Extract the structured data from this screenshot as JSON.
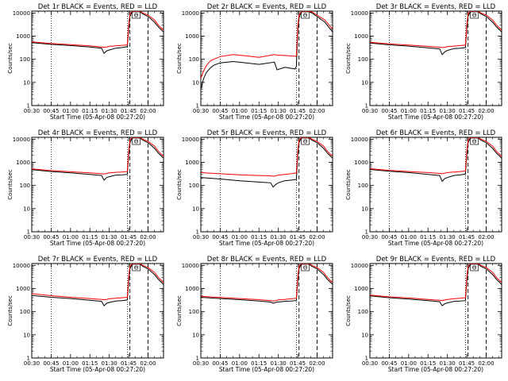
{
  "figure": {
    "common": {
      "xlabel": "Start Time (05-Apr-08 00:27:20)",
      "ylabel": "Counts/sec",
      "x_ticks": [
        "00:30",
        "00:45",
        "01:00",
        "01:15",
        "01:30",
        "01:45",
        "02:00"
      ],
      "y_ticks": [
        "1",
        "10",
        "100",
        "1000",
        "10000"
      ],
      "y_scale": "log",
      "ylim": [
        1,
        12000
      ],
      "xlim_minutes_after_midnight": [
        30,
        132
      ],
      "colors": {
        "events": "#000000",
        "lld": "#ff0000"
      },
      "marker_label": "Θ",
      "dotted_lines_at": [
        "00:45",
        "01:44"
      ],
      "dashed_lines_at": [
        "01:46",
        "02:00"
      ]
    }
  },
  "chart_data": [
    {
      "type": "line",
      "title": "Det 1r BLACK = Events, RED = LLD",
      "series": [
        {
          "name": "BLACK = Events",
          "x": [
            30,
            45,
            60,
            75,
            84,
            86,
            88,
            90,
            95,
            100,
            104,
            105,
            106,
            108,
            110,
            113,
            116,
            120,
            125,
            128,
            132
          ],
          "y": [
            520,
            440,
            390,
            340,
            300,
            180,
            230,
            250,
            300,
            320,
            350,
            2000,
            7000,
            12000,
            12000,
            12000,
            9000,
            7000,
            4000,
            2500,
            1500
          ]
        },
        {
          "name": "RED = LLD",
          "x": [
            30,
            45,
            60,
            75,
            84,
            86,
            88,
            90,
            95,
            100,
            104,
            105,
            106,
            108,
            110,
            113,
            116,
            120,
            125,
            128,
            132
          ],
          "y": [
            560,
            480,
            430,
            380,
            340,
            330,
            340,
            360,
            380,
            400,
            420,
            3000,
            9000,
            12000,
            12000,
            12000,
            10000,
            8000,
            5000,
            3000,
            1800
          ]
        }
      ]
    },
    {
      "type": "line",
      "title": "Det 2r BLACK = Events, RED = LLD",
      "series": [
        {
          "name": "BLACK = Events",
          "x": [
            30,
            32,
            34,
            36,
            38,
            40,
            45,
            55,
            65,
            75,
            87,
            89,
            95,
            103,
            104,
            105,
            106,
            108,
            112,
            116,
            120,
            126,
            132
          ],
          "y": [
            5,
            14,
            25,
            35,
            45,
            55,
            70,
            80,
            70,
            60,
            75,
            35,
            45,
            38,
            50,
            1500,
            6000,
            12000,
            12000,
            10000,
            7000,
            4000,
            1500
          ]
        },
        {
          "name": "RED = LLD",
          "x": [
            30,
            32,
            34,
            36,
            38,
            40,
            45,
            55,
            65,
            75,
            87,
            89,
            95,
            103,
            104,
            105,
            106,
            108,
            112,
            116,
            120,
            126,
            132
          ],
          "y": [
            15,
            30,
            50,
            70,
            90,
            100,
            130,
            160,
            140,
            120,
            160,
            150,
            145,
            135,
            140,
            2500,
            8000,
            12000,
            12000,
            11000,
            8000,
            5000,
            2000
          ]
        }
      ]
    },
    {
      "type": "line",
      "title": "Det 3r BLACK = Events, RED = LLD",
      "series": [
        {
          "name": "BLACK = Events",
          "x": [
            30,
            45,
            60,
            75,
            84,
            86,
            88,
            90,
            95,
            100,
            104,
            105,
            106,
            108,
            110,
            113,
            116,
            120,
            125,
            128,
            132
          ],
          "y": [
            500,
            420,
            370,
            310,
            280,
            160,
            210,
            240,
            290,
            300,
            320,
            2000,
            7000,
            12000,
            12000,
            12000,
            9000,
            7000,
            4000,
            2500,
            1500
          ]
        },
        {
          "name": "RED = LLD",
          "x": [
            30,
            45,
            60,
            75,
            84,
            86,
            88,
            90,
            95,
            100,
            104,
            105,
            106,
            108,
            110,
            113,
            116,
            120,
            125,
            128,
            132
          ],
          "y": [
            540,
            460,
            410,
            360,
            330,
            320,
            330,
            350,
            370,
            390,
            410,
            3000,
            9000,
            12000,
            12000,
            12000,
            10000,
            8000,
            5000,
            3000,
            1800
          ]
        }
      ]
    },
    {
      "type": "line",
      "title": "Det 4r BLACK = Events, RED = LLD",
      "series": [
        {
          "name": "BLACK = Events",
          "x": [
            30,
            45,
            60,
            75,
            84,
            86,
            88,
            90,
            95,
            100,
            104,
            105,
            106,
            108,
            110,
            113,
            116,
            120,
            125,
            128,
            132
          ],
          "y": [
            480,
            400,
            350,
            300,
            270,
            170,
            220,
            240,
            280,
            290,
            300,
            2000,
            7000,
            12000,
            12000,
            12000,
            9000,
            7000,
            4000,
            2500,
            1500
          ]
        },
        {
          "name": "RED = LLD",
          "x": [
            30,
            45,
            60,
            75,
            84,
            86,
            88,
            90,
            95,
            100,
            104,
            105,
            106,
            108,
            110,
            113,
            116,
            120,
            125,
            128,
            132
          ],
          "y": [
            520,
            440,
            390,
            350,
            320,
            310,
            330,
            350,
            370,
            380,
            400,
            3000,
            9000,
            12000,
            12000,
            12000,
            10000,
            8000,
            5000,
            3000,
            1800
          ]
        }
      ]
    },
    {
      "type": "line",
      "title": "Det 5r BLACK = Events, RED = LLD",
      "series": [
        {
          "name": "BLACK = Events",
          "x": [
            30,
            45,
            60,
            75,
            84,
            86,
            88,
            90,
            95,
            100,
            104,
            105,
            106,
            108,
            110,
            113,
            116,
            120,
            125,
            128,
            132
          ],
          "y": [
            220,
            190,
            160,
            140,
            130,
            85,
            110,
            130,
            160,
            170,
            180,
            2000,
            7000,
            12000,
            12000,
            12000,
            9000,
            7000,
            4000,
            2500,
            1500
          ]
        },
        {
          "name": "RED = LLD",
          "x": [
            30,
            45,
            60,
            75,
            84,
            86,
            88,
            90,
            95,
            100,
            104,
            105,
            106,
            108,
            110,
            113,
            116,
            120,
            125,
            128,
            132
          ],
          "y": [
            360,
            320,
            290,
            270,
            260,
            250,
            260,
            280,
            300,
            320,
            350,
            3000,
            9000,
            12000,
            12000,
            12000,
            10000,
            8000,
            5000,
            3000,
            1800
          ]
        }
      ]
    },
    {
      "type": "line",
      "title": "Det 6r BLACK = Events, RED = LLD",
      "series": [
        {
          "name": "BLACK = Events",
          "x": [
            30,
            45,
            60,
            75,
            84,
            86,
            88,
            90,
            95,
            100,
            104,
            105,
            106,
            108,
            110,
            113,
            116,
            120,
            125,
            128,
            132
          ],
          "y": [
            490,
            410,
            360,
            300,
            270,
            150,
            200,
            220,
            270,
            290,
            310,
            2000,
            7000,
            12000,
            12000,
            12000,
            9000,
            7000,
            4000,
            2500,
            1500
          ]
        },
        {
          "name": "RED = LLD",
          "x": [
            30,
            45,
            60,
            75,
            84,
            86,
            88,
            90,
            95,
            100,
            104,
            105,
            106,
            108,
            110,
            113,
            116,
            120,
            125,
            128,
            132
          ],
          "y": [
            530,
            450,
            400,
            360,
            330,
            320,
            340,
            360,
            380,
            400,
            420,
            3000,
            9000,
            12000,
            12000,
            12000,
            10000,
            8000,
            5000,
            3000,
            1800
          ]
        }
      ]
    },
    {
      "type": "line",
      "title": "Det 7r BLACK = Events, RED = LLD",
      "series": [
        {
          "name": "BLACK = Events",
          "x": [
            30,
            45,
            60,
            75,
            84,
            86,
            88,
            90,
            95,
            100,
            104,
            105,
            106,
            108,
            110,
            113,
            116,
            120,
            125,
            128,
            132
          ],
          "y": [
            500,
            420,
            370,
            310,
            280,
            180,
            230,
            250,
            290,
            300,
            320,
            2000,
            7000,
            12000,
            12000,
            12000,
            9000,
            7000,
            4000,
            2500,
            1500
          ]
        },
        {
          "name": "RED = LLD",
          "x": [
            30,
            45,
            60,
            75,
            84,
            86,
            88,
            90,
            95,
            100,
            104,
            105,
            106,
            108,
            110,
            113,
            116,
            120,
            125,
            128,
            132
          ],
          "y": [
            600,
            490,
            420,
            370,
            340,
            330,
            340,
            360,
            380,
            400,
            420,
            3000,
            9000,
            12000,
            12000,
            12000,
            10000,
            8000,
            5000,
            3000,
            1800
          ]
        }
      ]
    },
    {
      "type": "line",
      "title": "Det 8r BLACK = Events, RED = LLD",
      "series": [
        {
          "name": "BLACK = Events",
          "x": [
            30,
            45,
            60,
            75,
            84,
            86,
            88,
            90,
            95,
            100,
            104,
            105,
            106,
            108,
            110,
            113,
            116,
            120,
            125,
            128,
            132
          ],
          "y": [
            420,
            370,
            330,
            290,
            260,
            230,
            250,
            260,
            280,
            290,
            300,
            2000,
            7000,
            12000,
            12000,
            12000,
            9000,
            7000,
            4000,
            2500,
            1500
          ]
        },
        {
          "name": "RED = LLD",
          "x": [
            30,
            45,
            60,
            75,
            84,
            86,
            88,
            90,
            95,
            100,
            104,
            105,
            106,
            108,
            110,
            113,
            116,
            120,
            125,
            128,
            132
          ],
          "y": [
            460,
            410,
            370,
            330,
            300,
            290,
            300,
            320,
            340,
            360,
            380,
            3000,
            9000,
            12000,
            12000,
            12000,
            10000,
            8000,
            5000,
            3000,
            1800
          ]
        }
      ]
    },
    {
      "type": "line",
      "title": "Det 9r BLACK = Events, RED = LLD",
      "series": [
        {
          "name": "BLACK = Events",
          "x": [
            30,
            45,
            60,
            75,
            84,
            86,
            88,
            90,
            95,
            100,
            104,
            105,
            106,
            108,
            110,
            113,
            116,
            120,
            125,
            128,
            132
          ],
          "y": [
            480,
            400,
            350,
            300,
            270,
            180,
            220,
            240,
            280,
            290,
            300,
            2000,
            7000,
            12000,
            12000,
            12000,
            9000,
            7000,
            4000,
            2500,
            1500
          ]
        },
        {
          "name": "RED = LLD",
          "x": [
            30,
            45,
            60,
            75,
            84,
            86,
            88,
            90,
            95,
            100,
            104,
            105,
            106,
            108,
            110,
            113,
            116,
            120,
            125,
            128,
            132
          ],
          "y": [
            520,
            440,
            390,
            340,
            310,
            300,
            320,
            340,
            360,
            380,
            400,
            3000,
            9000,
            12000,
            12000,
            12000,
            10000,
            8000,
            5000,
            3000,
            1800
          ]
        }
      ]
    }
  ]
}
